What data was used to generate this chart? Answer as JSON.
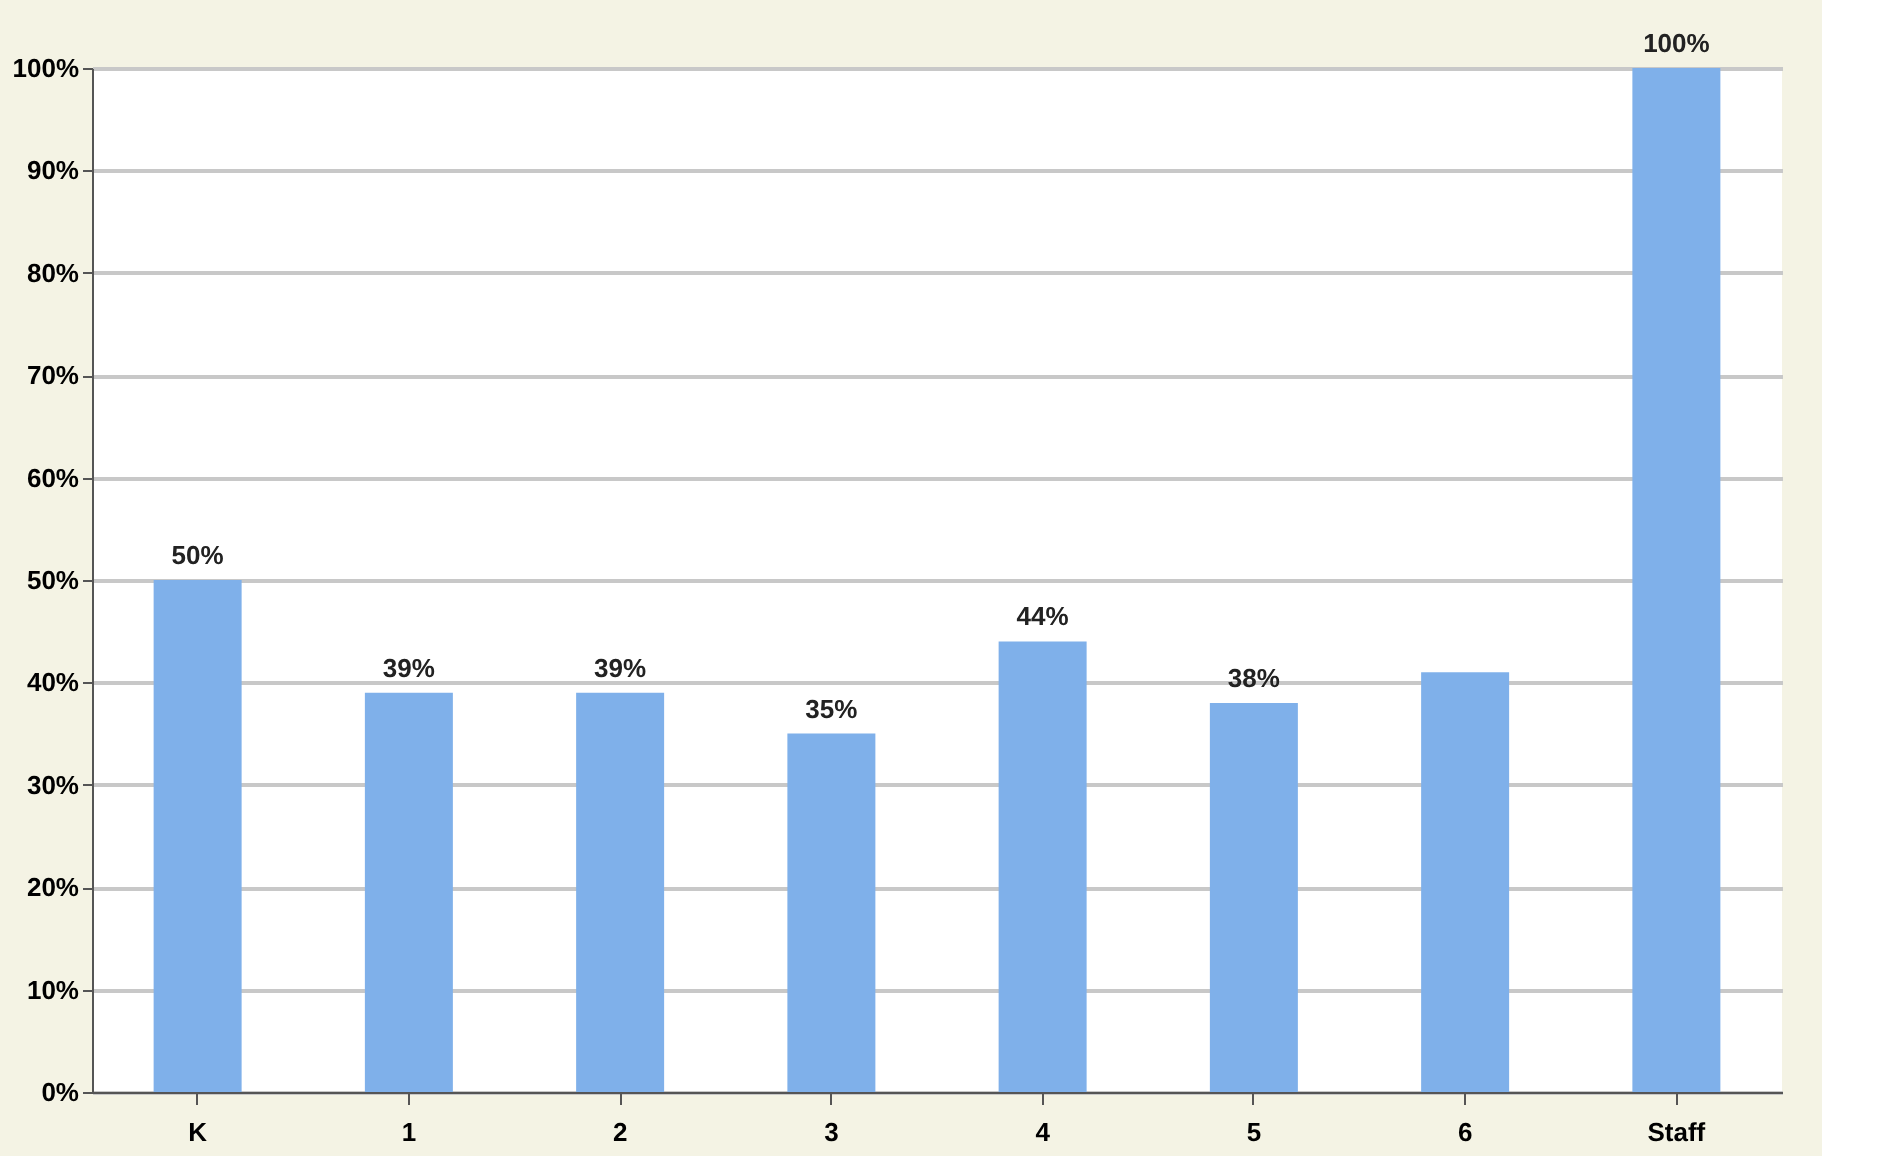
{
  "chart_data": {
    "type": "bar",
    "categories": [
      "K",
      "1",
      "2",
      "3",
      "4",
      "5",
      "6",
      "Staff"
    ],
    "values": [
      50,
      39,
      39,
      35,
      44,
      38,
      41,
      100
    ],
    "value_labels": [
      "50%",
      "39%",
      "39%",
      "35%",
      "44%",
      "38%",
      null,
      "100%"
    ],
    "color": "#7fb0ea",
    "ylim": [
      0,
      100
    ],
    "yticks": [
      {
        "value": 0,
        "label": "0%"
      },
      {
        "value": 10,
        "label": "10%"
      },
      {
        "value": 20,
        "label": "20%"
      },
      {
        "value": 30,
        "label": "30%"
      },
      {
        "value": 40,
        "label": "40%"
      },
      {
        "value": 50,
        "label": "50%"
      },
      {
        "value": 60,
        "label": "60%"
      },
      {
        "value": 70,
        "label": "70%"
      },
      {
        "value": 80,
        "label": "80%"
      },
      {
        "value": 90,
        "label": "90%"
      },
      {
        "value": 100,
        "label": "100%"
      }
    ],
    "grid": "y"
  }
}
